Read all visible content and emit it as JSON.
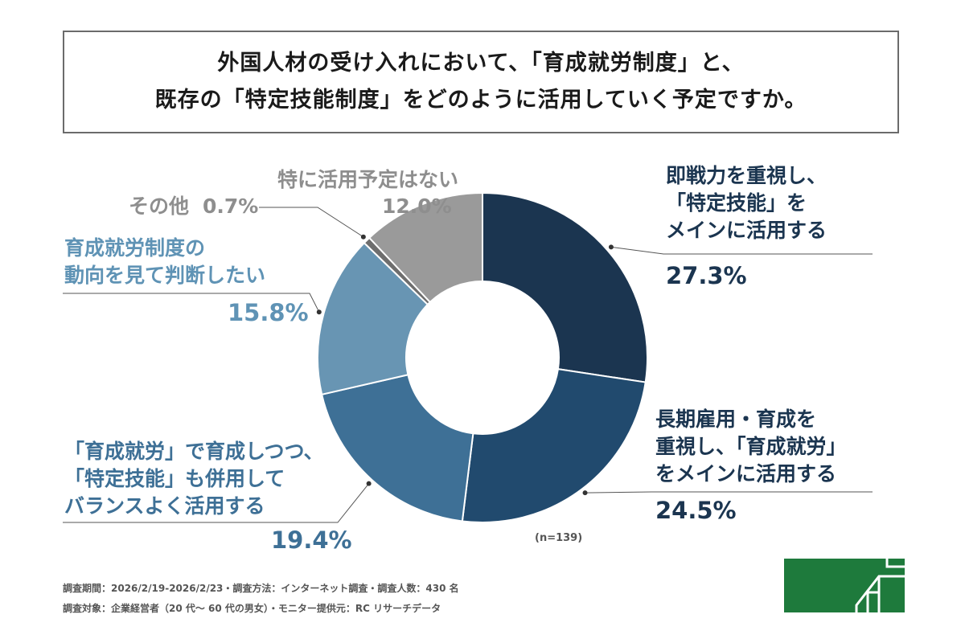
{
  "title": {
    "line1": "外国人材の受け入れにおいて、「育成就労制度」と、",
    "line2": "既存の「特定技能制度」をどのように活用していく予定ですか。"
  },
  "chart_data": {
    "type": "pie",
    "donut": true,
    "sample": "(n=139)",
    "slices": [
      {
        "label_lines": [
          "即戦力を重視し、",
          "「特定技能」を",
          "メインに活用する"
        ],
        "value": 27.3,
        "display": "27.3%",
        "color": "#1b3550"
      },
      {
        "label_lines": [
          "長期雇用・育成を",
          "重視し、「育成就労」",
          "をメインに活用する"
        ],
        "value": 24.5,
        "display": "24.5%",
        "color": "#214a6e"
      },
      {
        "label_lines": [
          "「育成就労」で育成しつつ、",
          "「特定技能」も併用して",
          "バランスよく活用する"
        ],
        "value": 19.4,
        "display": "19.4%",
        "color": "#3e7096"
      },
      {
        "label_lines": [
          "育成就労制度の",
          "動向を見て判断したい"
        ],
        "value": 15.8,
        "display": "15.8%",
        "color": "#6895b3"
      },
      {
        "label_lines": [
          "その他"
        ],
        "value": 0.7,
        "display": "0.7%",
        "color": "#6e6e6e"
      },
      {
        "label_lines": [
          "特に活用予定はない"
        ],
        "value": 12.0,
        "display": "12.0%",
        "color": "#9a9a9a"
      }
    ]
  },
  "footer": {
    "line1": "調査期間：2026/2/19-2026/2/23・調査方法：インターネット調査・調査人数：430 名",
    "line2": "調査対象：企業経営者（20 代～ 60 代の男女）・モニター提供元：RC リサーチデータ"
  },
  "logo": {
    "color": "#1e7a3c",
    "icon": "company-logo"
  }
}
